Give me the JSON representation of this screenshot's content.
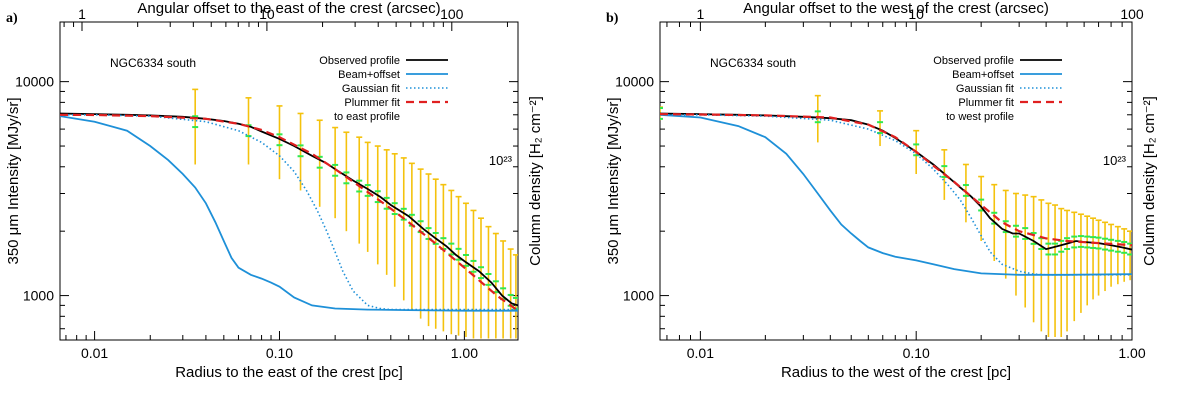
{
  "chart_data": [
    {
      "panel_label": "a)",
      "type": "line",
      "title": "NGC6334 south",
      "xlabel": "Radius to the east of the crest [pc]",
      "x2label": "Angular offset to the east of the crest (arcsec)",
      "ylabel": "350 μm Intensity [MJy/sr]",
      "y2label": "Column density [H₂ cm⁻²]",
      "xscale": "log",
      "yscale": "log",
      "xlim": [
        0.0065,
        1.95
      ],
      "ylim": [
        620,
        19000
      ],
      "xticks": [
        {
          "v": 0.01,
          "label": "0.01"
        },
        {
          "v": 0.1,
          "label": "0.10"
        },
        {
          "v": 1.0,
          "label": "1.00"
        }
      ],
      "yticks": [
        {
          "v": 1000,
          "label": "1000"
        },
        {
          "v": 10000,
          "label": "10000"
        }
      ],
      "x2ticks": [
        {
          "v": 1,
          "label": "1"
        },
        {
          "v": 10,
          "label": "10"
        },
        {
          "v": 100,
          "label": "100"
        }
      ],
      "x2_pc_per_arcsec": 0.00855,
      "y2ticks": [
        {
          "v": 1e+23,
          "label": "10²³",
          "at_intensity": 4300
        }
      ],
      "legend": {
        "position": "top-right",
        "entries": [
          "Observed profile",
          "Beam+offset",
          "Gaussian fit",
          "Plummer fit",
          "to east profile"
        ]
      },
      "series": [
        {
          "name": "Observed profile",
          "color": "#000000",
          "style": "solid",
          "x": [
            0.0065,
            0.01,
            0.015,
            0.02,
            0.03,
            0.04,
            0.05,
            0.06,
            0.07,
            0.08,
            0.1,
            0.12,
            0.15,
            0.18,
            0.2,
            0.25,
            0.3,
            0.35,
            0.4,
            0.5,
            0.6,
            0.7,
            0.8,
            0.9,
            1.0,
            1.2,
            1.4,
            1.6,
            1.8,
            1.95
          ],
          "y": [
            7100,
            7050,
            7000,
            6950,
            6850,
            6700,
            6550,
            6350,
            6150,
            5850,
            5400,
            5000,
            4500,
            4150,
            3900,
            3450,
            3150,
            2900,
            2650,
            2350,
            2050,
            1850,
            1700,
            1550,
            1450,
            1300,
            1150,
            1000,
            920,
            900
          ]
        },
        {
          "name": "Beam+offset",
          "color": "#1e90d8",
          "style": "solid",
          "x": [
            0.0065,
            0.01,
            0.015,
            0.02,
            0.025,
            0.03,
            0.035,
            0.04,
            0.045,
            0.05,
            0.055,
            0.06,
            0.07,
            0.08,
            0.09,
            0.1,
            0.12,
            0.15,
            0.2,
            0.3,
            0.5,
            1.0,
            1.95
          ],
          "y": [
            6900,
            6500,
            5900,
            5000,
            4300,
            3700,
            3200,
            2700,
            2200,
            1800,
            1500,
            1350,
            1250,
            1200,
            1150,
            1100,
            980,
            900,
            870,
            860,
            855,
            850,
            850
          ]
        },
        {
          "name": "Gaussian fit",
          "color": "#1e90d8",
          "style": "dotted",
          "x": [
            0.0065,
            0.01,
            0.02,
            0.04,
            0.06,
            0.08,
            0.1,
            0.12,
            0.14,
            0.16,
            0.18,
            0.2,
            0.22,
            0.25,
            0.3,
            0.35,
            0.4,
            0.5,
            0.7,
            1.0,
            1.95
          ],
          "y": [
            7000,
            7000,
            6900,
            6500,
            5900,
            5200,
            4500,
            3800,
            3100,
            2500,
            2000,
            1600,
            1300,
            1050,
            900,
            870,
            860,
            860,
            860,
            860,
            860
          ]
        },
        {
          "name": "Plummer fit to east profile",
          "color": "#e02020",
          "style": "dashed",
          "x": [
            0.0065,
            0.01,
            0.02,
            0.04,
            0.06,
            0.08,
            0.1,
            0.15,
            0.2,
            0.3,
            0.4,
            0.5,
            0.7,
            1.0,
            1.5,
            1.95
          ],
          "y": [
            7000,
            6980,
            6900,
            6700,
            6350,
            5950,
            5500,
            4600,
            3900,
            3050,
            2550,
            2200,
            1750,
            1350,
            1000,
            850
          ]
        }
      ],
      "errorbars": {
        "color": "#f4c20d",
        "markers_color": "#30e850",
        "points": [
          [
            0.035,
            6500,
            9200,
            4100
          ],
          [
            0.068,
            5900,
            8400,
            4100
          ],
          [
            0.1,
            5350,
            7700,
            3500
          ],
          [
            0.13,
            4750,
            7100,
            3100
          ],
          [
            0.165,
            4200,
            6600,
            2600
          ],
          [
            0.2,
            3850,
            6100,
            2300
          ],
          [
            0.23,
            3550,
            5800,
            2000
          ],
          [
            0.27,
            3250,
            5500,
            1750
          ],
          [
            0.3,
            3100,
            5200,
            1600
          ],
          [
            0.34,
            2900,
            5000,
            1400
          ],
          [
            0.38,
            2700,
            4800,
            1250
          ],
          [
            0.42,
            2550,
            4600,
            1100
          ],
          [
            0.47,
            2400,
            4400,
            950
          ],
          [
            0.52,
            2250,
            4150,
            850
          ],
          [
            0.58,
            2100,
            3900,
            780
          ],
          [
            0.64,
            1950,
            3700,
            720
          ],
          [
            0.7,
            1850,
            3500,
            700
          ],
          [
            0.77,
            1750,
            3300,
            680
          ],
          [
            0.85,
            1650,
            3100,
            660
          ],
          [
            0.93,
            1560,
            2900,
            650
          ],
          [
            1.02,
            1460,
            2700,
            640
          ],
          [
            1.12,
            1370,
            2500,
            630
          ],
          [
            1.23,
            1280,
            2300,
            630
          ],
          [
            1.35,
            1190,
            2100,
            630
          ],
          [
            1.48,
            1100,
            1950,
            630
          ],
          [
            1.62,
            1020,
            1800,
            630
          ],
          [
            1.78,
            950,
            1650,
            630
          ],
          [
            1.9,
            920,
            1550,
            630
          ]
        ]
      }
    },
    {
      "panel_label": "b)",
      "type": "line",
      "title": "NGC6334 south",
      "xlabel": "Radius to the west of the crest [pc]",
      "x2label": "Angular offset to the west of the crest (arcsec)",
      "ylabel": "350 μm Intensity [MJy/sr]",
      "y2label": "Column density [H₂ cm⁻²]",
      "xscale": "log",
      "yscale": "log",
      "xlim": [
        0.0065,
        1.0
      ],
      "ylim": [
        620,
        19000
      ],
      "xticks": [
        {
          "v": 0.01,
          "label": "0.01"
        },
        {
          "v": 0.1,
          "label": "0.10"
        },
        {
          "v": 1.0,
          "label": "1.00"
        }
      ],
      "yticks": [
        {
          "v": 1000,
          "label": "1000"
        },
        {
          "v": 10000,
          "label": "10000"
        }
      ],
      "x2ticks": [
        {
          "v": 1,
          "label": "1"
        },
        {
          "v": 10,
          "label": "10"
        },
        {
          "v": 100,
          "label": "100"
        }
      ],
      "x2_pc_per_arcsec": 0.01,
      "y2ticks": [
        {
          "v": 1e+23,
          "label": "10²³",
          "at_intensity": 4300
        }
      ],
      "legend": {
        "position": "top-right",
        "entries": [
          "Observed profile",
          "Beam+offset",
          "Gaussian fit",
          "Plummer fit",
          "to west profile"
        ]
      },
      "series": [
        {
          "name": "Observed profile",
          "color": "#000000",
          "style": "solid",
          "x": [
            0.0065,
            0.01,
            0.015,
            0.02,
            0.03,
            0.04,
            0.05,
            0.06,
            0.07,
            0.08,
            0.1,
            0.12,
            0.14,
            0.16,
            0.18,
            0.2,
            0.22,
            0.25,
            0.28,
            0.3,
            0.35,
            0.4,
            0.45,
            0.5,
            0.55,
            0.6,
            0.7,
            0.8,
            0.9,
            1.0
          ],
          "y": [
            7100,
            7050,
            7000,
            6950,
            6850,
            6750,
            6600,
            6300,
            5900,
            5450,
            4700,
            4100,
            3600,
            3200,
            2900,
            2600,
            2300,
            2050,
            1950,
            1950,
            1800,
            1650,
            1700,
            1750,
            1800,
            1780,
            1760,
            1720,
            1680,
            1640
          ]
        },
        {
          "name": "Beam+offset",
          "color": "#1e90d8",
          "style": "solid",
          "x": [
            0.0065,
            0.01,
            0.015,
            0.02,
            0.025,
            0.03,
            0.035,
            0.04,
            0.045,
            0.05,
            0.055,
            0.06,
            0.07,
            0.08,
            0.1,
            0.12,
            0.15,
            0.2,
            0.3,
            0.5,
            1.0
          ],
          "y": [
            7000,
            6800,
            6200,
            5500,
            4600,
            3700,
            3000,
            2500,
            2150,
            1950,
            1800,
            1680,
            1580,
            1520,
            1460,
            1400,
            1330,
            1270,
            1250,
            1250,
            1260
          ]
        },
        {
          "name": "Gaussian fit",
          "color": "#1e90d8",
          "style": "dotted",
          "x": [
            0.0065,
            0.01,
            0.02,
            0.04,
            0.06,
            0.08,
            0.1,
            0.12,
            0.14,
            0.16,
            0.18,
            0.2,
            0.22,
            0.25,
            0.3,
            0.35,
            0.4,
            0.5,
            0.7,
            1.0
          ],
          "y": [
            7000,
            7000,
            6900,
            6600,
            6000,
            5300,
            4600,
            3900,
            3300,
            2800,
            2300,
            1900,
            1600,
            1400,
            1300,
            1260,
            1250,
            1250,
            1250,
            1250
          ]
        },
        {
          "name": "Plummer fit to west profile",
          "color": "#e02020",
          "style": "dashed",
          "x": [
            0.0065,
            0.01,
            0.02,
            0.04,
            0.06,
            0.08,
            0.1,
            0.12,
            0.15,
            0.2,
            0.25,
            0.3,
            0.4,
            0.5,
            0.7,
            1.0
          ],
          "y": [
            7050,
            7020,
            6950,
            6800,
            6300,
            5500,
            4700,
            4050,
            3400,
            2650,
            2200,
            2000,
            1850,
            1800,
            1760,
            1720
          ]
        }
      ],
      "errorbars": {
        "color": "#f4c20d",
        "markers_color": "#30e850",
        "points": [
          [
            0.0065,
            7100,
            7600,
            6600
          ],
          [
            0.035,
            6850,
            8600,
            5200
          ],
          [
            0.068,
            6100,
            7300,
            5000
          ],
          [
            0.1,
            4800,
            5900,
            3700
          ],
          [
            0.135,
            3800,
            4800,
            2800
          ],
          [
            0.17,
            3100,
            4100,
            2200
          ],
          [
            0.2,
            2650,
            3600,
            1800
          ],
          [
            0.23,
            2300,
            3300,
            1450
          ],
          [
            0.26,
            2100,
            3100,
            1200
          ],
          [
            0.29,
            2000,
            3000,
            1000
          ],
          [
            0.32,
            1950,
            2950,
            880
          ],
          [
            0.35,
            1850,
            2900,
            750
          ],
          [
            0.38,
            1750,
            2800,
            680
          ],
          [
            0.41,
            1650,
            2700,
            640
          ],
          [
            0.44,
            1650,
            2650,
            640
          ],
          [
            0.47,
            1700,
            2550,
            640
          ],
          [
            0.5,
            1750,
            2500,
            680
          ],
          [
            0.54,
            1780,
            2450,
            760
          ],
          [
            0.58,
            1790,
            2400,
            830
          ],
          [
            0.62,
            1780,
            2350,
            900
          ],
          [
            0.66,
            1770,
            2300,
            960
          ],
          [
            0.7,
            1760,
            2250,
            1000
          ],
          [
            0.75,
            1740,
            2200,
            1050
          ],
          [
            0.8,
            1720,
            2150,
            1100
          ],
          [
            0.86,
            1700,
            2100,
            1130
          ],
          [
            0.92,
            1680,
            2050,
            1160
          ],
          [
            0.98,
            1650,
            2000,
            1180
          ]
        ]
      }
    }
  ]
}
